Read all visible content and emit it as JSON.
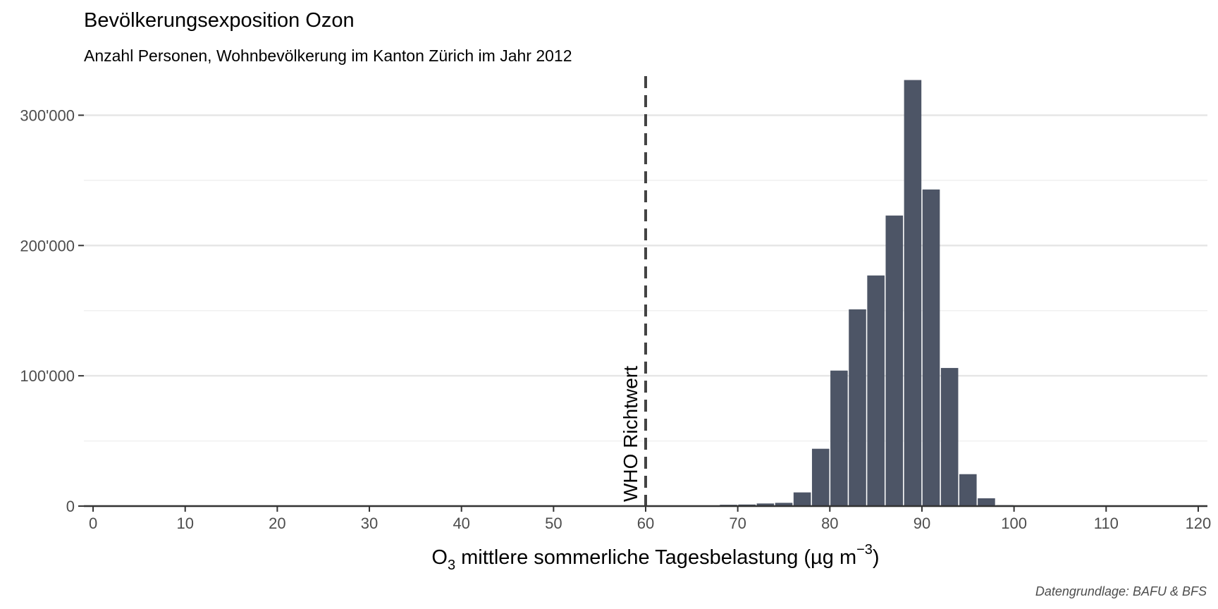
{
  "chart_data": {
    "type": "bar",
    "title": "Bevölkerungsexposition Ozon",
    "subtitle": "Anzahl Personen, Wohnbevölkerung im Kanton Zürich im Jahr 2012",
    "xlabel": {
      "prefix": "O",
      "subscript": "3",
      "middle": " mittlere sommerliche Tagesbelastung (µg m",
      "superscript": "−3",
      "suffix": ")"
    },
    "ylabel": "",
    "caption": "Datengrundlage: BAFU & BFS",
    "xlim": [
      -1,
      121
    ],
    "ylim": [
      0,
      330000
    ],
    "x_ticks": [
      0,
      10,
      20,
      30,
      40,
      50,
      60,
      70,
      80,
      90,
      100,
      110,
      120
    ],
    "y_ticks": [
      {
        "value": 0,
        "label": "0"
      },
      {
        "value": 100000,
        "label": "100'000"
      },
      {
        "value": 200000,
        "label": "200'000"
      },
      {
        "value": 300000,
        "label": "300'000"
      }
    ],
    "y_minor_ticks": [
      50000,
      150000,
      250000
    ],
    "grid": true,
    "bin_width": 2,
    "bars": [
      {
        "x": 69,
        "value": 1000
      },
      {
        "x": 71,
        "value": 1200
      },
      {
        "x": 73,
        "value": 2000
      },
      {
        "x": 75,
        "value": 2500
      },
      {
        "x": 77,
        "value": 10500
      },
      {
        "x": 79,
        "value": 44000
      },
      {
        "x": 81,
        "value": 104000
      },
      {
        "x": 83,
        "value": 151000
      },
      {
        "x": 85,
        "value": 177000
      },
      {
        "x": 87,
        "value": 223000
      },
      {
        "x": 89,
        "value": 327000
      },
      {
        "x": 91,
        "value": 243000
      },
      {
        "x": 93,
        "value": 106000
      },
      {
        "x": 95,
        "value": 24500
      },
      {
        "x": 97,
        "value": 6000
      },
      {
        "x": 99,
        "value": 700
      }
    ],
    "reference_line": {
      "x": 60,
      "label": "WHO Richtwert",
      "color": "#444444",
      "style": "dashed"
    },
    "bar_color": "#4d5566"
  }
}
